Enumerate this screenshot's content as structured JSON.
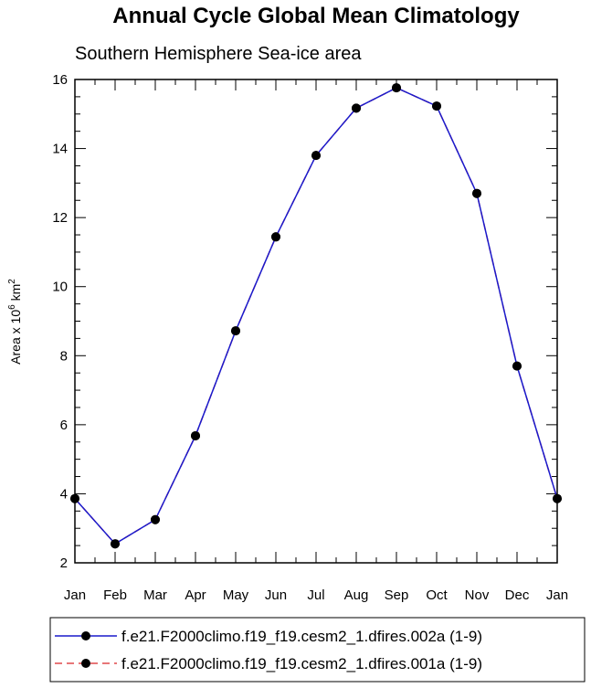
{
  "chart_data": {
    "type": "line",
    "title": "Annual Cycle Global Mean Climatology",
    "subtitle": "Southern Hemisphere Sea-ice area",
    "ylabel_prefix": "Area x 10",
    "ylabel_exp": "6",
    "ylabel_unit": " km",
    "ylabel_unit_exp": "2",
    "xlabel": "",
    "categories": [
      "Jan",
      "Feb",
      "Mar",
      "Apr",
      "May",
      "Jun",
      "Jul",
      "Aug",
      "Sep",
      "Oct",
      "Nov",
      "Dec",
      "Jan"
    ],
    "ylim": [
      2,
      16
    ],
    "yticks": [
      2,
      4,
      6,
      8,
      10,
      12,
      14,
      16
    ],
    "grid": false,
    "legend_position": "bottom",
    "series": [
      {
        "name": "f.e21.F2000climo.f19_f19.cesm2_1.dfires.002a (1-9)",
        "color": "#1a1acc",
        "dash": "solid",
        "marker": "filled-circle",
        "values": [
          3.86,
          2.55,
          3.25,
          5.68,
          8.72,
          11.44,
          13.8,
          15.17,
          15.76,
          15.23,
          12.7,
          7.7,
          3.86
        ]
      },
      {
        "name": "f.e21.F2000climo.f19_f19.cesm2_1.dfires.001a (1-9)",
        "color": "#e0484c",
        "dash": "dashed",
        "marker": "filled-circle",
        "values": [
          3.86,
          2.55,
          3.25,
          5.68,
          8.72,
          11.44,
          13.8,
          15.17,
          15.76,
          15.23,
          12.7,
          7.7,
          3.86
        ]
      }
    ]
  }
}
